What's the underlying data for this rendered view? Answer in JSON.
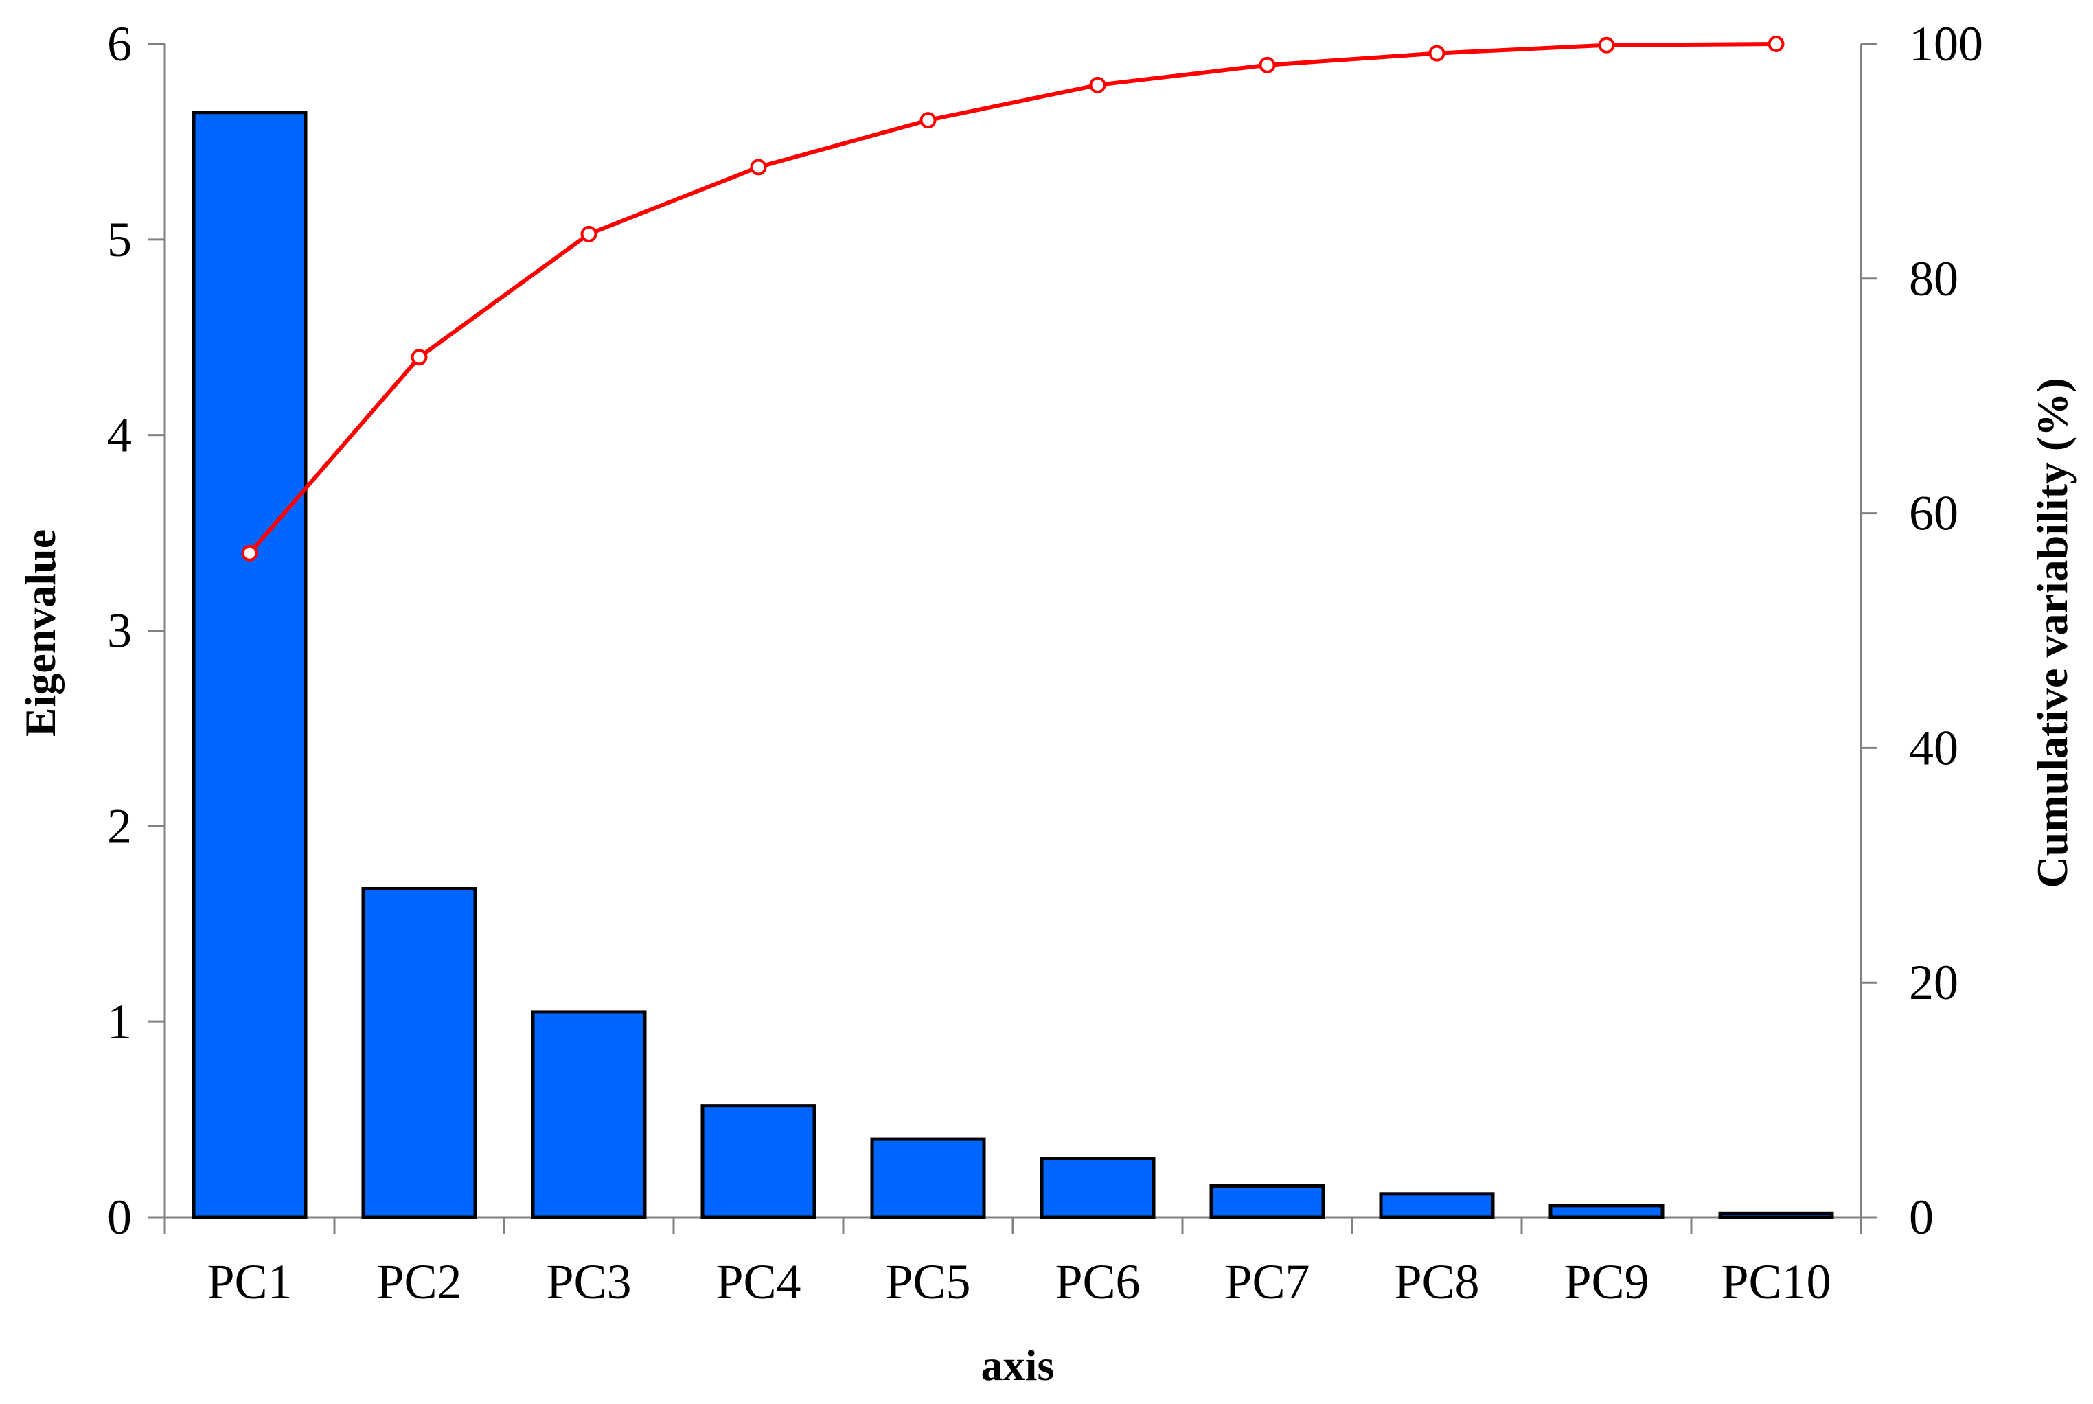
{
  "chart_data": {
    "type": "bar",
    "categories": [
      "PC1",
      "PC2",
      "PC3",
      "PC4",
      "PC5",
      "PC6",
      "PC7",
      "PC8",
      "PC9",
      "PC10"
    ],
    "series": [
      {
        "type": "bar",
        "axis": "left",
        "values": [
          5.65,
          1.68,
          1.05,
          0.57,
          0.4,
          0.3,
          0.16,
          0.12,
          0.06,
          0.02
        ]
      },
      {
        "type": "line",
        "axis": "right",
        "values": [
          56.6,
          73.3,
          83.8,
          89.5,
          93.5,
          96.5,
          98.2,
          99.2,
          99.9,
          100.0
        ]
      }
    ],
    "xlabel": "axis",
    "ylabel": "Eigenvalue",
    "y2label": "Cumulative variability (%)",
    "ylim": [
      0,
      6
    ],
    "y2lim": [
      0,
      100
    ],
    "yticks": [
      "0",
      "1",
      "2",
      "3",
      "4",
      "5",
      "6"
    ],
    "y2ticks": [
      "0",
      "20",
      "40",
      "60",
      "80",
      "100"
    ],
    "grid": false,
    "colors": {
      "bar_fill": "#0066ff",
      "bar_stroke": "#000000",
      "line": "#ff0000",
      "marker_fill": "#ffffff",
      "axis": "#808080"
    }
  }
}
